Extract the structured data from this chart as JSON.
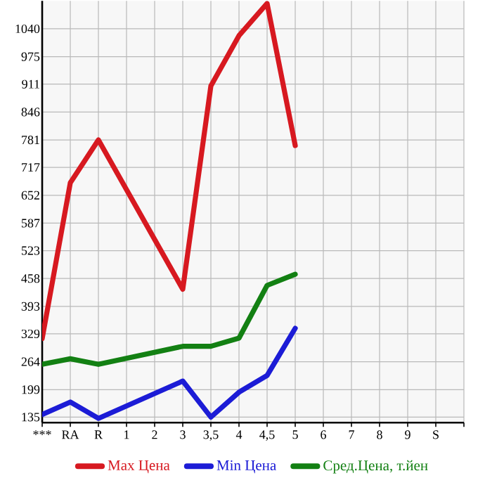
{
  "chart_data": {
    "type": "line",
    "categories": [
      "***",
      "RA",
      "R",
      "1",
      "2",
      "3",
      "3,5",
      "4",
      "4,5",
      "5",
      "6",
      "7",
      "8",
      "9",
      "S"
    ],
    "series": [
      {
        "name": "Max Цена",
        "color": "#d71920",
        "values": [
          318,
          681,
          781,
          null,
          null,
          433,
          907,
          1024,
          1099,
          768,
          null,
          null,
          null,
          null,
          null
        ]
      },
      {
        "name": "Min Цена",
        "color": "#1c1cd6",
        "values": [
          141,
          170,
          132,
          null,
          null,
          219,
          135,
          193,
          232,
          342,
          null,
          null,
          null,
          null,
          null
        ]
      },
      {
        "name": "Сред.Цена, т.йен",
        "color": "#138013",
        "values": [
          258,
          271,
          258,
          null,
          null,
          300,
          300,
          319,
          442,
          468,
          null,
          null,
          null,
          null,
          null
        ]
      }
    ],
    "ylim": [
      122,
      1105
    ],
    "yticks": [
      135,
      199,
      264,
      329,
      393,
      458,
      523,
      587,
      652,
      717,
      781,
      846,
      911,
      975,
      1040
    ],
    "grid": true,
    "legend": "bottom",
    "marker": "none",
    "line_style": "solid"
  }
}
